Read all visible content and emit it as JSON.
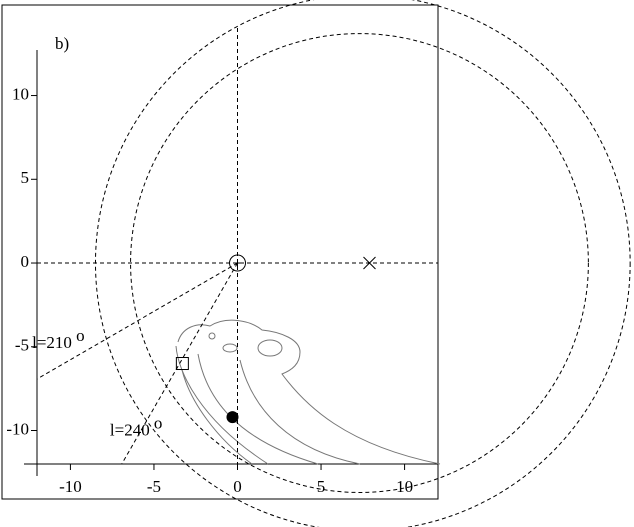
{
  "chart_data": {
    "type": "galactic-map",
    "panel_label": "b)",
    "xlim": [
      -12,
      12
    ],
    "ylim": [
      -12,
      12.6
    ],
    "xticks": [
      -10,
      -5,
      0,
      5,
      10
    ],
    "yticks": [
      -10,
      -5,
      0,
      5,
      10
    ],
    "points": {
      "marker": [
        "sun",
        "cross",
        "square",
        "dot"
      ],
      "x": [
        0,
        7.9,
        -3.3,
        -0.3
      ],
      "y": [
        0,
        0,
        -6,
        -9.2
      ]
    },
    "circles": {
      "cx": [
        7.5,
        7.3
      ],
      "r": [
        16,
        13.7
      ]
    },
    "sightlines": {
      "l": [
        210,
        240
      ],
      "value_labels": [
        "l=210",
        "l=240"
      ],
      "sup": "o"
    }
  }
}
